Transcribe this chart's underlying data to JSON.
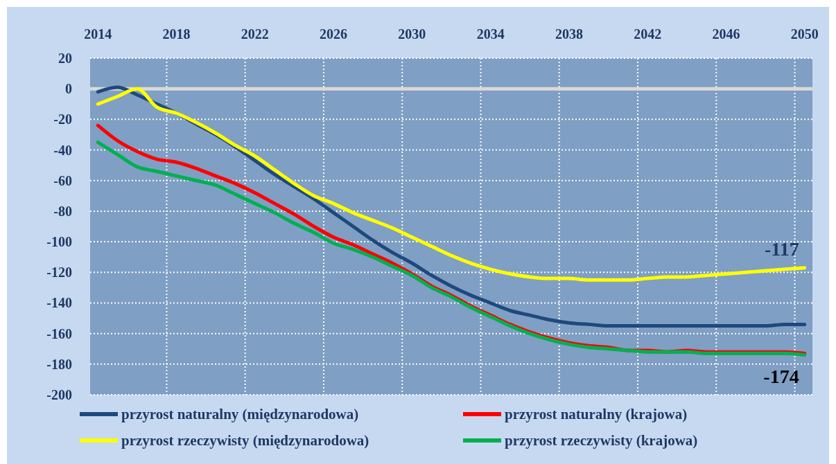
{
  "chart_data": {
    "type": "line",
    "x": [
      2014,
      2015,
      2016,
      2017,
      2018,
      2019,
      2020,
      2021,
      2022,
      2023,
      2024,
      2025,
      2026,
      2027,
      2028,
      2029,
      2030,
      2031,
      2032,
      2033,
      2034,
      2035,
      2036,
      2037,
      2038,
      2039,
      2040,
      2041,
      2042,
      2043,
      2044,
      2045,
      2046,
      2047,
      2048,
      2049,
      2050
    ],
    "xlim": [
      2013.6,
      2050.4
    ],
    "xticks": [
      2014,
      {
        "value": 2017.5,
        "label": null
      },
      2018,
      {
        "value": 2021.5,
        "label": null
      },
      2022,
      {
        "value": 2025.5,
        "label": null
      },
      2026,
      {
        "value": 2029.5,
        "label": null
      },
      2030,
      {
        "value": 2033.5,
        "label": null
      },
      2034,
      {
        "value": 2037.5,
        "label": null
      },
      2038,
      {
        "value": 2041.5,
        "label": null
      },
      2042,
      {
        "value": 2045.5,
        "label": null
      },
      2046,
      {
        "value": 2049.5,
        "label": null
      },
      2050
    ],
    "ylim": [
      -200,
      20
    ],
    "yticks": [
      20,
      0,
      -20,
      -40,
      -60,
      -80,
      -100,
      -120,
      -140,
      -160,
      -180,
      -200
    ],
    "grid": true,
    "legend": "bottom",
    "line_style": "solid",
    "marker": "none",
    "ref_lines": [
      {
        "axis": "y",
        "value": 0,
        "color": "#d9d9d9"
      }
    ],
    "series": [
      {
        "name": "przyrost naturalny (międzynarodowa)",
        "color": "#1f497d",
        "values": [
          -2,
          1,
          -4,
          -10,
          -16,
          -23,
          -30,
          -38,
          -47,
          -56,
          -64,
          -72,
          -81,
          -90,
          -99,
          -107,
          -114,
          -122,
          -129,
          -135,
          -140,
          -145,
          -148,
          -151,
          -153,
          -154,
          -155,
          -155,
          -155,
          -155,
          -155,
          -155,
          -155,
          -155,
          -155,
          -154,
          -154
        ]
      },
      {
        "name": "przyrost naturalny (krajowa)",
        "color": "#ff0000",
        "values": [
          -24,
          -34,
          -41,
          -46,
          -48,
          -52,
          -57,
          -62,
          -68,
          -75,
          -82,
          -90,
          -97,
          -102,
          -108,
          -114,
          -121,
          -129,
          -135,
          -142,
          -148,
          -154,
          -159,
          -163,
          -166,
          -168,
          -169,
          -171,
          -171,
          -172,
          -171,
          -172,
          -172,
          -172,
          -172,
          -172,
          -173
        ]
      },
      {
        "name": "przyrost rzeczywisty (międzynarodowa)",
        "color": "#ffff00",
        "values": [
          -10,
          -5,
          0,
          -12,
          -16,
          -22,
          -29,
          -37,
          -44,
          -53,
          -62,
          -70,
          -75,
          -81,
          -86,
          -91,
          -97,
          -103,
          -109,
          -114,
          -118,
          -121,
          -123,
          -124,
          -124,
          -125,
          -125,
          -125,
          -124,
          -123,
          -123,
          -122,
          -121,
          -120,
          -119,
          -118,
          -117
        ]
      },
      {
        "name": "przyrost rzeczywisty (krajowa)",
        "color": "#00b050",
        "values": [
          -35,
          -43,
          -51,
          -54,
          -57,
          -60,
          -63,
          -69,
          -75,
          -81,
          -88,
          -94,
          -101,
          -105,
          -110,
          -116,
          -122,
          -130,
          -136,
          -143,
          -149,
          -155,
          -160,
          -164,
          -167,
          -169,
          -170,
          -171,
          -172,
          -172,
          -172,
          -173,
          -173,
          -173,
          -173,
          -173,
          -174
        ]
      }
    ],
    "annotations": [
      {
        "text": "-117",
        "x": 2050,
        "y": -117
      },
      {
        "text": "-174",
        "x": 2050,
        "y": -174
      }
    ]
  }
}
